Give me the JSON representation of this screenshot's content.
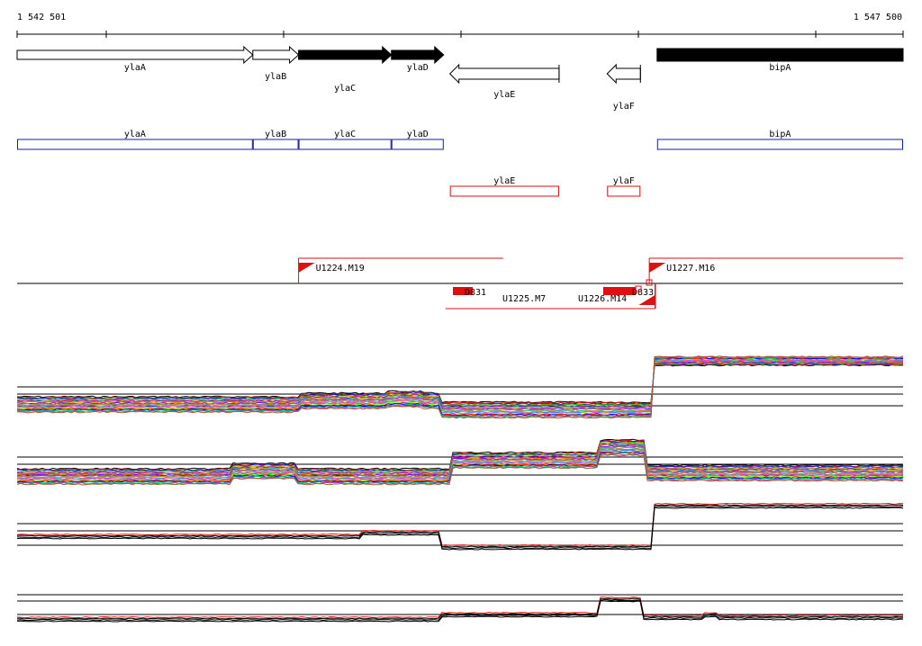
{
  "coordinates": {
    "start": "1 542 501",
    "end": "1 547 500",
    "start_bp": 1542501,
    "end_bp": 1547500
  },
  "colors": {
    "annotation_outline": "#1a1aa8",
    "transcript": "#e01010",
    "gene_strong": "#000000",
    "gene_weak": "#ffffff"
  },
  "genes": [
    {
      "name": "ylaA",
      "start_bp": 1542501,
      "end_bp": 1543831,
      "strand": "+",
      "fill": "white"
    },
    {
      "name": "ylaB",
      "start_bp": 1543831,
      "end_bp": 1544089,
      "strand": "+",
      "fill": "white"
    },
    {
      "name": "ylaC",
      "start_bp": 1544089,
      "end_bp": 1544613,
      "strand": "+",
      "fill": "black"
    },
    {
      "name": "ylaD",
      "start_bp": 1544613,
      "end_bp": 1544908,
      "strand": "+",
      "fill": "black"
    },
    {
      "name": "ylaE",
      "start_bp": 1544943,
      "end_bp": 1545559,
      "strand": "-",
      "fill": "white"
    },
    {
      "name": "ylaF",
      "start_bp": 1545830,
      "end_bp": 1546018,
      "strand": "-",
      "fill": "white"
    },
    {
      "name": "bipA",
      "start_bp": 1546112,
      "end_bp": 1547500,
      "strand": "+",
      "fill": "black"
    }
  ],
  "forward_units": [
    {
      "name": "U1224.M19",
      "start_bp": 1544089,
      "end_bp": 1545243
    },
    {
      "name": "U1227.M16",
      "start_bp": 1546068,
      "end_bp": 1547500
    }
  ],
  "reverse_units": [
    {
      "name": "U1225.M7",
      "start_bp": 1544918,
      "end_bp": 1546100
    },
    {
      "name": "U1226.M14",
      "start_bp": 1545766,
      "end_bp": 1546103
    }
  ],
  "promoter_labels": [
    "D831",
    "D833"
  ],
  "panels": [
    {
      "id": "panel-1",
      "baseline": 450,
      "levels": [
        430,
        438,
        451
      ]
    },
    {
      "id": "panel-2",
      "baseline": 530,
      "levels": [
        508,
        516,
        528
      ]
    },
    {
      "id": "panel-3",
      "baseline": 600,
      "levels": [
        582,
        590,
        606
      ]
    },
    {
      "id": "panel-4",
      "baseline": 686,
      "levels": [
        661,
        668,
        683
      ]
    }
  ]
}
